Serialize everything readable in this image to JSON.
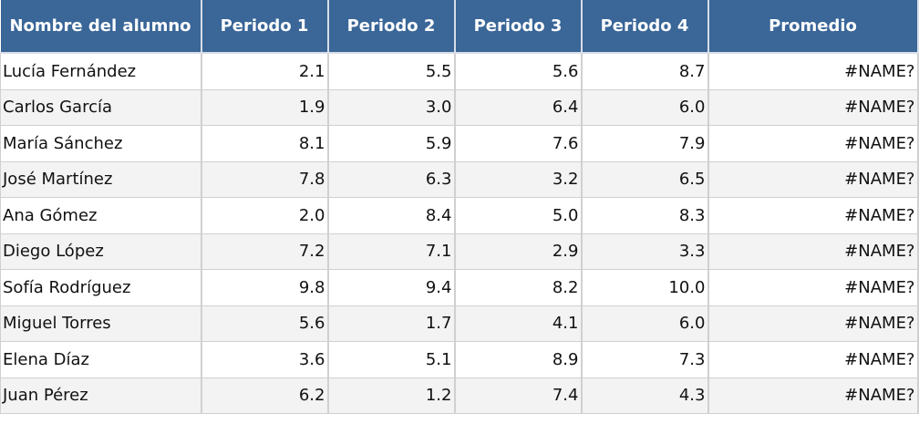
{
  "table": {
    "header": [
      "Nombre del alumno",
      "Periodo 1",
      "Periodo 2",
      "Periodo 3",
      "Periodo 4",
      "Promedio"
    ],
    "rows": [
      [
        "Lucía Fernández",
        "2.1",
        "5.5",
        "5.6",
        "8.7",
        "#NAME?"
      ],
      [
        "Carlos García",
        "1.9",
        "3.0",
        "6.4",
        "6.0",
        "#NAME?"
      ],
      [
        "María Sánchez",
        "8.1",
        "5.9",
        "7.6",
        "7.9",
        "#NAME?"
      ],
      [
        "José Martínez",
        "7.8",
        "6.3",
        "3.2",
        "6.5",
        "#NAME?"
      ],
      [
        "Ana Gómez",
        "2.0",
        "8.4",
        "5.0",
        "8.3",
        "#NAME?"
      ],
      [
        "Diego López",
        "7.2",
        "7.1",
        "2.9",
        "3.3",
        "#NAME?"
      ],
      [
        "Sofía Rodríguez",
        "9.8",
        "9.4",
        "8.2",
        "10.0",
        "#NAME?"
      ],
      [
        "Miguel Torres",
        "5.6",
        "1.7",
        "4.1",
        "6.0",
        "#NAME?"
      ],
      [
        "Elena Díaz",
        "3.6",
        "5.1",
        "8.9",
        "7.3",
        "#NAME?"
      ],
      [
        "Juan Pérez",
        "6.2",
        "1.2",
        "7.4",
        "4.3",
        "#NAME?"
      ]
    ]
  }
}
